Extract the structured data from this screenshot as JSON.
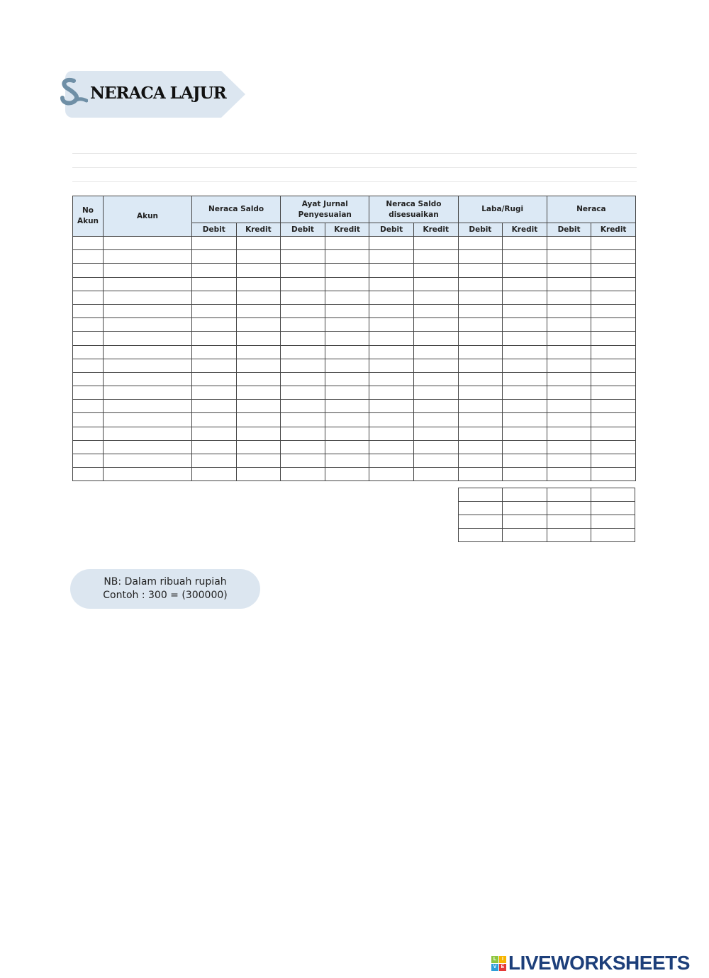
{
  "title": "NERACA LAJUR",
  "table": {
    "headers": {
      "no_akun": "No Akun",
      "akun": "Akun",
      "groups": [
        "Neraca Saldo",
        "Ayat Jurnal Penyesuaian",
        "Neraca Saldo disesuaikan",
        "Laba/Rugi",
        "Neraca"
      ],
      "debit": "Debit",
      "kredit": "Kredit"
    }
  },
  "note": {
    "line1": "NB: Dalam ribuah rupiah",
    "line2": "Contoh : 300 = (300000)"
  },
  "logo": {
    "text": "LIVEWORKSHEETS",
    "letters": [
      "L",
      "I",
      "V",
      "E"
    ],
    "colors": [
      "#8dc63f",
      "#f7b500",
      "#2e9fd8",
      "#e53935"
    ]
  },
  "colors": {
    "header_bg": "#dce9f5",
    "tag_bg": "#dce6f0",
    "logo_text": "#1d3f7a"
  }
}
